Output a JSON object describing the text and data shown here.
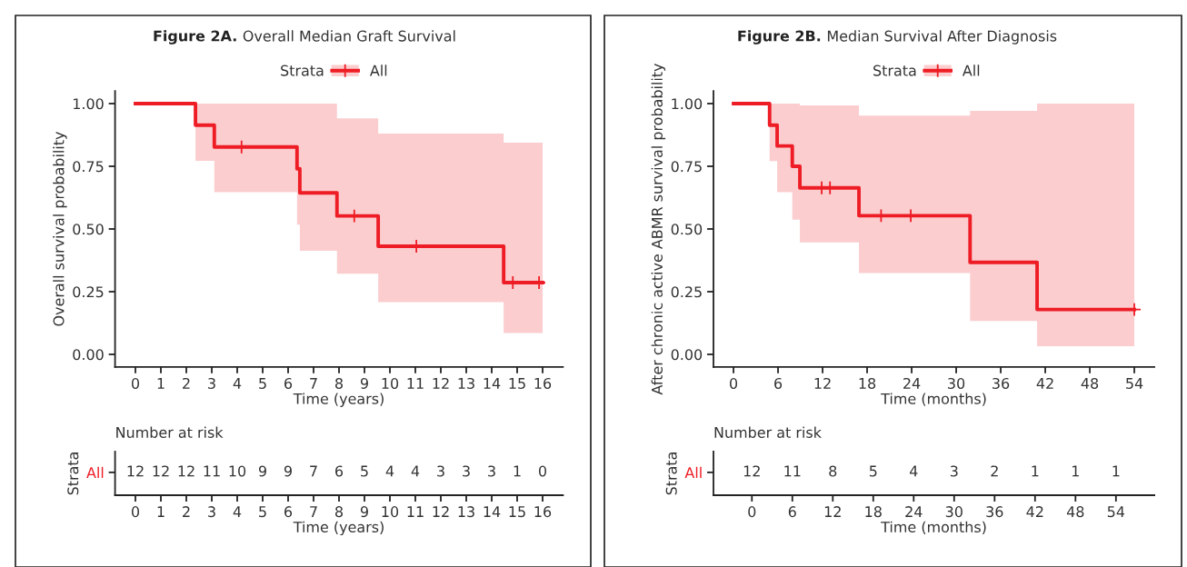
{
  "chart_data": [
    {
      "type": "step",
      "title": "Figure 2A. Overall Median Graft Survival",
      "legend_title": "Strata",
      "legend": "top",
      "xlabel": "Time (years)",
      "ylabel": "Overall survival probability",
      "xlim": [
        -0.8,
        16.8
      ],
      "xticks": [
        0,
        1,
        2,
        3,
        4,
        5,
        6,
        7,
        8,
        9,
        10,
        11,
        12,
        13,
        14,
        15,
        16
      ],
      "ylim": [
        -0.05,
        1.05
      ],
      "yticks": [
        {
          "value": 0,
          "label": "0.00"
        },
        {
          "value": 0.25,
          "label": "0.25"
        },
        {
          "value": 0.5,
          "label": "0.50"
        },
        {
          "value": 0.75,
          "label": "0.75"
        },
        {
          "value": 1,
          "label": "1.00"
        }
      ],
      "grid": false,
      "series": [
        {
          "name": "All",
          "color": "#ee1c25",
          "x": [
            0,
            2.36,
            3.1,
            6.35,
            6.46,
            7.92,
            9.54,
            14.47,
            16
          ],
          "values": [
            1.0,
            0.914,
            0.827,
            0.74,
            0.644,
            0.552,
            0.431,
            0.286,
            0.286
          ],
          "lower": [
            null,
            0.772,
            0.647,
            0.517,
            0.413,
            0.322,
            0.208,
            0.085,
            0.085
          ],
          "upper": [
            null,
            1.0,
            1.0,
            1.0,
            1.0,
            0.941,
            0.88,
            0.844,
            0.844
          ]
        },
        {
          "type": "scatter",
          "marker": "cross",
          "color": "#ee1c25",
          "x": [
            4.17,
            8.6,
            11.04,
            14.83,
            15.86
          ],
          "values": [
            0.827,
            0.552,
            0.431,
            0.286,
            0.286
          ]
        }
      ]
    },
    {
      "type": "heatmap",
      "title": "Number at risk",
      "ylabel": "Strata",
      "xlabel": "Time (years)",
      "categories": [
        "0",
        "1",
        "2",
        "3",
        "4",
        "5",
        "6",
        "7",
        "8",
        "9",
        "10",
        "11",
        "12",
        "13",
        "14",
        "15",
        "16"
      ],
      "y_categories": [
        "All"
      ],
      "data_labels": true,
      "cells": [
        [
          12,
          12,
          12,
          11,
          10,
          9,
          9,
          7,
          6,
          5,
          4,
          4,
          3,
          3,
          3,
          1,
          0
        ]
      ]
    },
    {
      "type": "step",
      "title": "Figure 2B. Median Survival After Diagnosis",
      "legend_title": "Strata",
      "legend": "top",
      "xlabel": "Time (months)",
      "ylabel": "After chronic active ABMR survival probability",
      "xlim": [
        -2.7,
        56.7
      ],
      "xticks": [
        0,
        6,
        12,
        18,
        24,
        30,
        36,
        42,
        48,
        54
      ],
      "ylim": [
        -0.05,
        1.05
      ],
      "yticks": [
        {
          "value": 0,
          "label": "0.00"
        },
        {
          "value": 0.25,
          "label": "0.25"
        },
        {
          "value": 0.5,
          "label": "0.50"
        },
        {
          "value": 0.75,
          "label": "0.75"
        },
        {
          "value": 1,
          "label": "1.00"
        }
      ],
      "grid": false,
      "series": [
        {
          "name": "All",
          "color": "#ee1c25",
          "x": [
            0,
            4.86,
            5.88,
            7.92,
            8.94,
            16.9,
            31.87,
            40.9,
            54
          ],
          "values": [
            1.0,
            0.914,
            0.831,
            0.75,
            0.664,
            0.553,
            0.367,
            0.179,
            0.179
          ],
          "lower": [
            null,
            0.771,
            0.647,
            0.537,
            0.447,
            0.324,
            0.133,
            0.033,
            0.033
          ],
          "upper": [
            null,
            1.0,
            1.0,
            1.0,
            0.993,
            0.952,
            0.971,
            1.0,
            1.0
          ]
        },
        {
          "type": "scatter",
          "marker": "cross",
          "color": "#ee1c25",
          "x": [
            11.88,
            13.0,
            19.88,
            23.88,
            54
          ],
          "values": [
            0.664,
            0.664,
            0.553,
            0.553,
            0.179
          ]
        }
      ]
    },
    {
      "type": "heatmap",
      "title": "Number at risk",
      "ylabel": "Strata",
      "xlabel": "Time (months)",
      "categories": [
        "0",
        "6",
        "12",
        "18",
        "24",
        "30",
        "36",
        "42",
        "48",
        "54"
      ],
      "y_categories": [
        "All"
      ],
      "data_labels": true,
      "cells": [
        [
          12,
          11,
          8,
          5,
          4,
          3,
          2,
          1,
          1,
          1
        ]
      ]
    }
  ]
}
